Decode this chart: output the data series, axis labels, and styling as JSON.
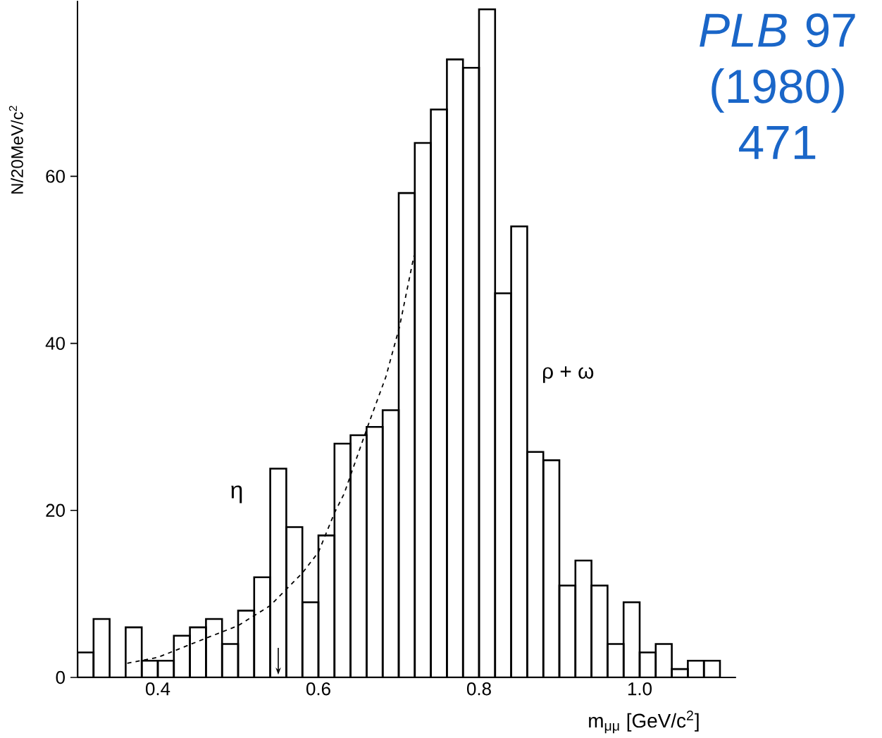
{
  "chart_data": {
    "type": "histogram",
    "xlabel": "m$_{μμ}$ [GeV/c$^{2}$]",
    "ylabel": "N/20MeV/c$^{2}$",
    "bins": [
      0.3,
      0.32,
      0.34,
      0.36,
      0.38,
      0.4,
      0.42,
      0.44,
      0.46,
      0.48,
      0.5,
      0.52,
      0.54,
      0.56,
      0.58,
      0.6,
      0.62,
      0.64,
      0.66,
      0.68,
      0.7,
      0.72,
      0.74,
      0.76,
      0.78,
      0.8,
      0.82,
      0.84,
      0.86,
      0.88,
      0.9,
      0.92,
      0.94,
      0.96,
      0.98,
      1.0,
      1.02,
      1.04,
      1.06,
      1.08,
      1.1
    ],
    "values": [
      3,
      7,
      0,
      6,
      2,
      2,
      5,
      6,
      7,
      4,
      8,
      12,
      25,
      18,
      9,
      17,
      28,
      29,
      30,
      32,
      58,
      64,
      68,
      74,
      73,
      80,
      46,
      54,
      27,
      26,
      11,
      14,
      11,
      4,
      9,
      3,
      4,
      1,
      2,
      2
    ],
    "color": "#000000",
    "series": [
      {
        "type": "line",
        "line_style": "dashed",
        "color": "#000000",
        "x": [
          0.362,
          0.4,
          0.46,
          0.5,
          0.54,
          0.58,
          0.6,
          0.62,
          0.632,
          0.663,
          0.684,
          0.701,
          0.719
        ],
        "values": [
          1.7,
          2.4,
          4.7,
          6.2,
          8.6,
          12.5,
          15,
          19.7,
          22,
          30.5,
          36,
          42,
          50.5
        ]
      }
    ],
    "xlim": [
      0.3,
      1.12
    ],
    "ylim": [
      0,
      81
    ],
    "xticks": [
      {
        "value": 0.4,
        "label": "0.4"
      },
      {
        "value": 0.6,
        "label": "0.6"
      },
      {
        "value": 0.8,
        "label": "0.8"
      },
      {
        "value": 1.0,
        "label": "1.0"
      }
    ],
    "yticks": [
      {
        "value": 0,
        "label": "0"
      },
      {
        "value": 20,
        "label": "20"
      },
      {
        "value": 40,
        "label": "40"
      },
      {
        "value": 60,
        "label": "60"
      }
    ],
    "annotations": [
      "η",
      "ρ + ω",
      "*PLB* 97 (1980) 471"
    ]
  }
}
